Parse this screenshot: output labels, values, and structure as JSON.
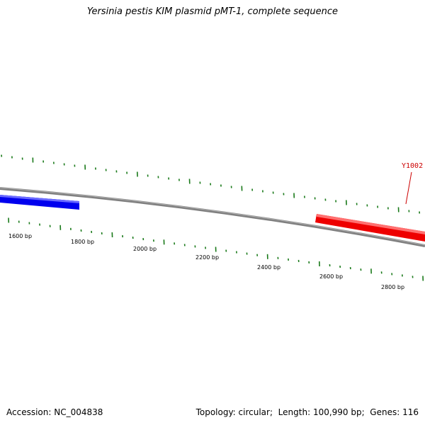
{
  "title": "Yersinia pestis KIM plasmid pMT-1, complete sequence",
  "footer": {
    "accession_label": "Accession:",
    "accession": "NC_004838",
    "topology_label": "Topology:",
    "topology": "circular",
    "length_label": "Length:",
    "length": "100,990 bp",
    "genes_label": "Genes:",
    "genes": "116"
  },
  "colors": {
    "backbone": "#808080",
    "tick": "#1a7a1a",
    "gene_blue": "#0000ee",
    "gene_red": "#ee0000",
    "gene_label": "#cc0000"
  },
  "scale_labels": [
    "1600 bp",
    "1800 bp",
    "2000 bp",
    "2200 bp",
    "2400 bp",
    "2600 bp",
    "2800 bp"
  ],
  "genes": [
    {
      "id": "blue-gene",
      "color": "blue",
      "label": ""
    },
    {
      "id": "red-gene",
      "color": "red",
      "label": "Y1002"
    }
  ]
}
